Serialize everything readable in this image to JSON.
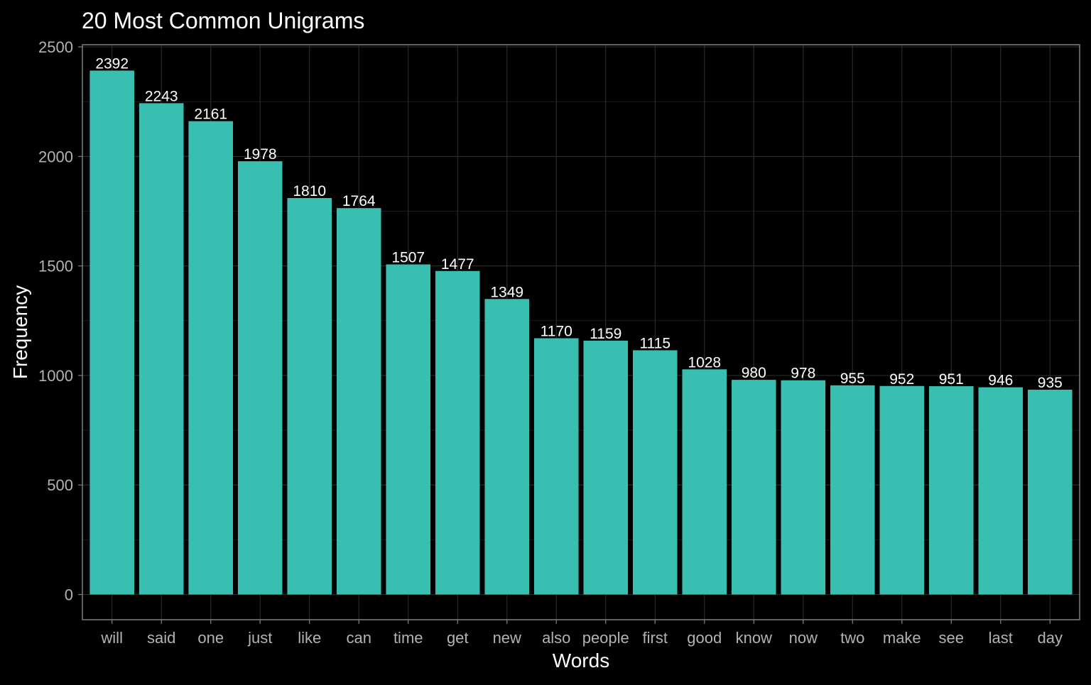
{
  "chart_data": {
    "type": "bar",
    "title": "20 Most Common Unigrams",
    "xlabel": "Words",
    "ylabel": "Frequency",
    "categories": [
      "will",
      "said",
      "one",
      "just",
      "like",
      "can",
      "time",
      "get",
      "new",
      "also",
      "people",
      "first",
      "good",
      "know",
      "now",
      "two",
      "make",
      "see",
      "last",
      "day"
    ],
    "values": [
      2392,
      2243,
      2161,
      1978,
      1810,
      1764,
      1507,
      1477,
      1349,
      1170,
      1159,
      1115,
      1028,
      980,
      978,
      955,
      952,
      951,
      946,
      935
    ],
    "yticks": [
      0,
      500,
      1000,
      1500,
      2000,
      2500
    ],
    "ylim": [
      -115,
      2510
    ],
    "grid": true,
    "legend": "none",
    "data_labels": true,
    "colors": {
      "background": "#000000",
      "bar": "#38BFB1",
      "grid": "#2a2a2a",
      "panel_border": "#7f7f7f",
      "axis_text": "#b3b3b3",
      "title_text": "#ffffff",
      "label_text": "#ffffff"
    }
  }
}
